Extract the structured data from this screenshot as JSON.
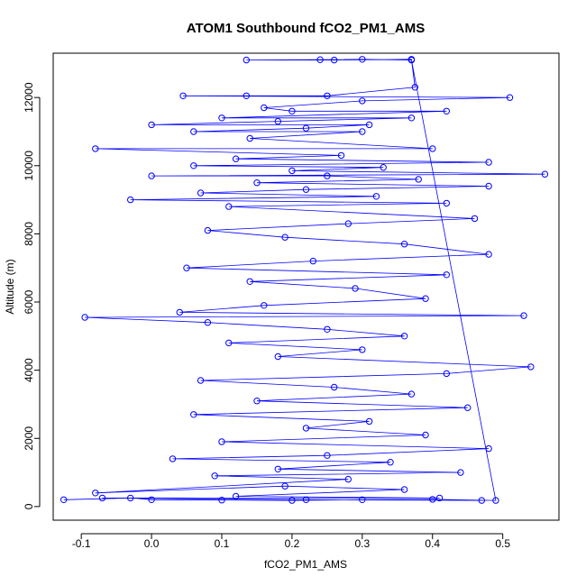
{
  "chart_data": {
    "type": "scatter",
    "title": "ATOM1 Southbound fCO2_PM1_AMS",
    "xlabel": "fCO2_PM1_AMS",
    "ylabel": "Altitude (m)",
    "xlim": [
      -0.14,
      0.58
    ],
    "ylim": [
      -400,
      13300
    ],
    "xticks": [
      -0.1,
      0.0,
      0.1,
      0.2,
      0.3,
      0.4,
      0.5
    ],
    "xtick_labels": [
      "-0.1",
      "0.0",
      "0.1",
      "0.2",
      "0.3",
      "0.4",
      "0.5"
    ],
    "yticks": [
      0,
      2000,
      4000,
      6000,
      8000,
      10000,
      12000
    ],
    "ytick_labels": [
      "0",
      "2000",
      "4000",
      "6000",
      "8000",
      "10000",
      "12000"
    ],
    "grid": false,
    "legend": "none",
    "marker": "open-circle",
    "line": "connected",
    "series_color": "#0000ff",
    "series": [
      {
        "points": [
          [
            -0.125,
            200
          ],
          [
            -0.03,
            250
          ],
          [
            0.0,
            200
          ],
          [
            0.1,
            190
          ],
          [
            0.2,
            180
          ],
          [
            0.3,
            200
          ],
          [
            0.4,
            210
          ],
          [
            0.49,
            180
          ],
          [
            0.37,
            13100
          ],
          [
            0.3,
            13120
          ],
          [
            0.24,
            13110
          ],
          [
            0.135,
            13100
          ],
          [
            0.26,
            13100
          ],
          [
            0.37,
            13120
          ],
          [
            0.375,
            12300
          ],
          [
            0.25,
            12050
          ],
          [
            0.135,
            12050
          ],
          [
            0.045,
            12050
          ],
          [
            0.51,
            12000
          ],
          [
            0.3,
            11900
          ],
          [
            0.16,
            11700
          ],
          [
            0.2,
            11600
          ],
          [
            0.42,
            11600
          ],
          [
            0.1,
            11400
          ],
          [
            0.37,
            11400
          ],
          [
            0.18,
            11300
          ],
          [
            0.0,
            11200
          ],
          [
            0.31,
            11200
          ],
          [
            0.22,
            11100
          ],
          [
            0.06,
            11000
          ],
          [
            0.3,
            11000
          ],
          [
            0.14,
            10800
          ],
          [
            0.4,
            10500
          ],
          [
            -0.08,
            10500
          ],
          [
            0.27,
            10300
          ],
          [
            0.12,
            10200
          ],
          [
            0.48,
            10100
          ],
          [
            0.06,
            10000
          ],
          [
            0.33,
            9950
          ],
          [
            0.2,
            9850
          ],
          [
            0.56,
            9750
          ],
          [
            0.0,
            9700
          ],
          [
            0.25,
            9700
          ],
          [
            0.38,
            9600
          ],
          [
            0.15,
            9500
          ],
          [
            0.48,
            9400
          ],
          [
            0.22,
            9300
          ],
          [
            0.07,
            9200
          ],
          [
            0.32,
            9100
          ],
          [
            -0.03,
            9000
          ],
          [
            0.42,
            8900
          ],
          [
            0.11,
            8800
          ],
          [
            0.46,
            8450
          ],
          [
            0.28,
            8300
          ],
          [
            0.08,
            8100
          ],
          [
            0.19,
            7900
          ],
          [
            0.36,
            7700
          ],
          [
            0.48,
            7400
          ],
          [
            0.23,
            7200
          ],
          [
            0.05,
            7000
          ],
          [
            0.42,
            6800
          ],
          [
            0.14,
            6600
          ],
          [
            0.29,
            6400
          ],
          [
            0.39,
            6100
          ],
          [
            0.16,
            5900
          ],
          [
            0.04,
            5700
          ],
          [
            0.53,
            5600
          ],
          [
            -0.095,
            5550
          ],
          [
            0.08,
            5400
          ],
          [
            0.25,
            5200
          ],
          [
            0.36,
            5000
          ],
          [
            0.11,
            4800
          ],
          [
            0.3,
            4600
          ],
          [
            0.18,
            4400
          ],
          [
            0.54,
            4100
          ],
          [
            0.42,
            3900
          ],
          [
            0.07,
            3700
          ],
          [
            0.26,
            3500
          ],
          [
            0.37,
            3300
          ],
          [
            0.15,
            3100
          ],
          [
            0.45,
            2900
          ],
          [
            0.06,
            2700
          ],
          [
            0.31,
            2500
          ],
          [
            0.22,
            2300
          ],
          [
            0.39,
            2100
          ],
          [
            0.1,
            1900
          ],
          [
            0.48,
            1700
          ],
          [
            0.25,
            1500
          ],
          [
            0.03,
            1400
          ],
          [
            0.34,
            1300
          ],
          [
            0.18,
            1100
          ],
          [
            0.44,
            1000
          ],
          [
            0.09,
            900
          ],
          [
            0.28,
            800
          ],
          [
            -0.08,
            400
          ],
          [
            0.19,
            600
          ],
          [
            0.36,
            500
          ],
          [
            0.12,
            300
          ],
          [
            0.41,
            250
          ],
          [
            -0.07,
            250
          ],
          [
            0.22,
            200
          ],
          [
            0.47,
            180
          ]
        ]
      }
    ]
  }
}
